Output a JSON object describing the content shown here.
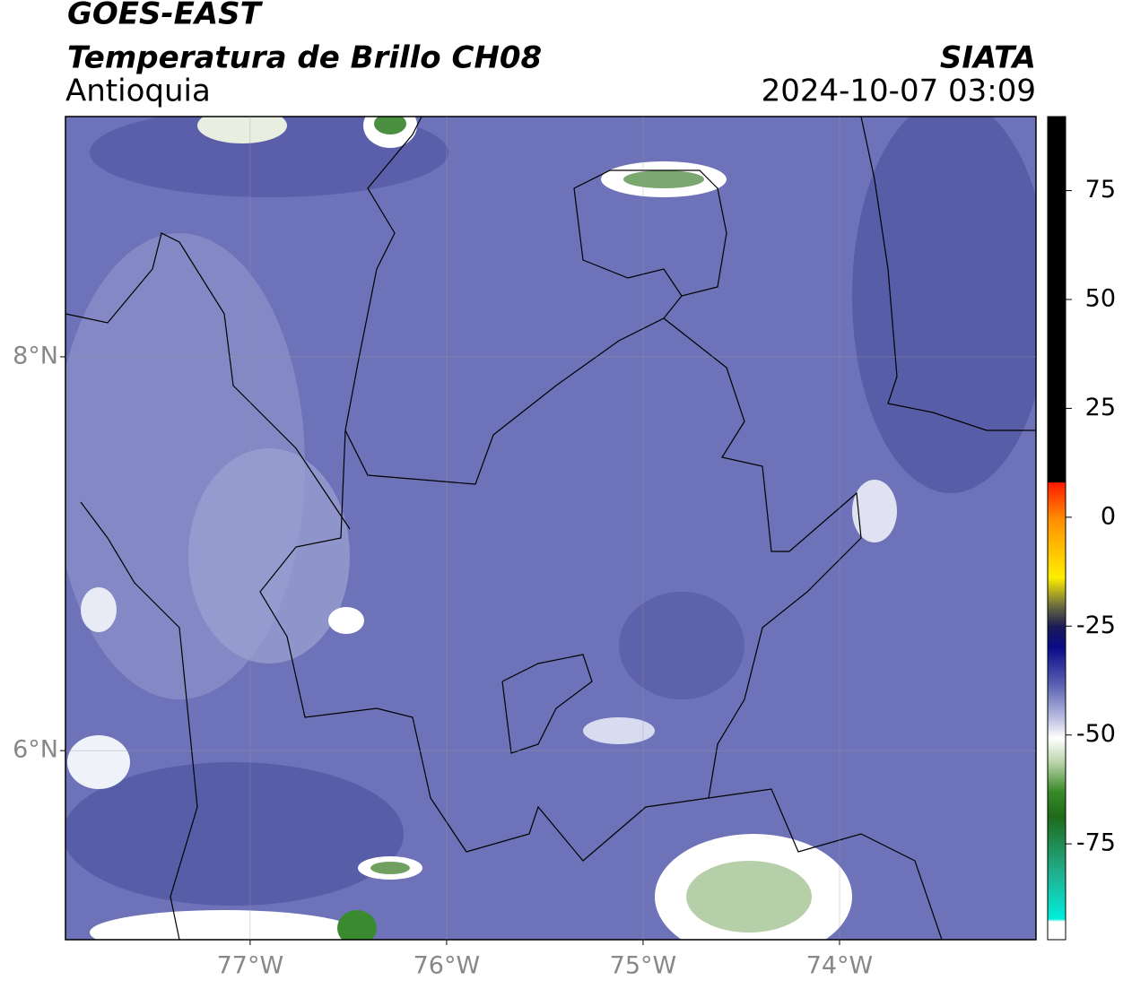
{
  "header": {
    "satellite": "GOES-EAST",
    "product": "Temperatura de Brillo CH08",
    "region": "Antioquia",
    "source": "SIATA",
    "datetime": "2024-10-07 03:09"
  },
  "map": {
    "xlim": [
      -77.94,
      -73.0
    ],
    "ylim": [
      5.04,
      9.22
    ],
    "xticks": [
      {
        "value": -77,
        "label": "77°W"
      },
      {
        "value": -76,
        "label": "76°W"
      },
      {
        "value": -75,
        "label": "75°W"
      },
      {
        "value": -74,
        "label": "74°W"
      }
    ],
    "yticks": [
      {
        "value": 8,
        "label": "8°N"
      },
      {
        "value": 6,
        "label": "6°N"
      }
    ],
    "grid": true
  },
  "colorbar": {
    "lim": [
      -97,
      92
    ],
    "ticks": [
      75,
      50,
      25,
      0,
      -25,
      -50,
      -75
    ]
  }
}
